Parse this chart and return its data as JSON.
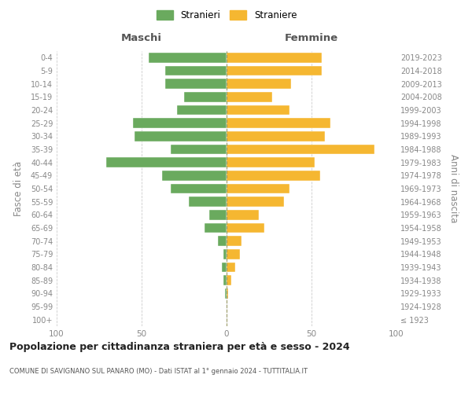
{
  "age_groups": [
    "100+",
    "95-99",
    "90-94",
    "85-89",
    "80-84",
    "75-79",
    "70-74",
    "65-69",
    "60-64",
    "55-59",
    "50-54",
    "45-49",
    "40-44",
    "35-39",
    "30-34",
    "25-29",
    "20-24",
    "15-19",
    "10-14",
    "5-9",
    "0-4"
  ],
  "birth_years": [
    "≤ 1923",
    "1924-1928",
    "1929-1933",
    "1934-1938",
    "1939-1943",
    "1944-1948",
    "1949-1953",
    "1954-1958",
    "1959-1963",
    "1964-1968",
    "1969-1973",
    "1974-1978",
    "1979-1983",
    "1984-1988",
    "1989-1993",
    "1994-1998",
    "1999-2003",
    "2004-2008",
    "2009-2013",
    "2014-2018",
    "2019-2023"
  ],
  "males": [
    0,
    0,
    1,
    2,
    3,
    2,
    5,
    13,
    10,
    22,
    33,
    38,
    71,
    33,
    54,
    55,
    29,
    25,
    36,
    36,
    46
  ],
  "females": [
    0,
    0,
    1,
    3,
    5,
    8,
    9,
    22,
    19,
    34,
    37,
    55,
    52,
    87,
    58,
    61,
    37,
    27,
    38,
    56,
    56
  ],
  "male_color": "#6aaa5e",
  "female_color": "#f5b731",
  "background_color": "#ffffff",
  "grid_color": "#cccccc",
  "title": "Popolazione per cittadinanza straniera per età e sesso - 2024",
  "subtitle": "COMUNE DI SAVIGNANO SUL PANARO (MO) - Dati ISTAT al 1° gennaio 2024 - TUTTITALIA.IT",
  "ylabel_left": "Fasce di età",
  "ylabel_right": "Anni di nascita",
  "header_left": "Maschi",
  "header_right": "Femmine",
  "legend_males": "Stranieri",
  "legend_females": "Straniere",
  "xlim": 100
}
